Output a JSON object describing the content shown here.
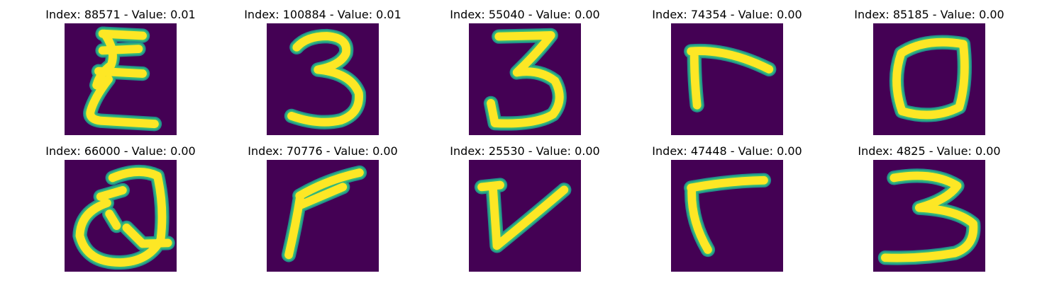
{
  "colors": {
    "background": "#440154",
    "stroke": "#fde725",
    "edge": "#35b779",
    "halo": "#21918c"
  },
  "images": [
    {
      "title": "Index: 88571 - Value: 0.01",
      "glyph": "E"
    },
    {
      "title": "Index: 100884 - Value: 0.01",
      "glyph": "3"
    },
    {
      "title": "Index: 55040 - Value: 0.00",
      "glyph": "3"
    },
    {
      "title": "Index: 74354 - Value: 0.00",
      "glyph": "r"
    },
    {
      "title": "Index: 85185 - Value: 0.00",
      "glyph": "0"
    },
    {
      "title": "Index: 66000 - Value: 0.00",
      "glyph": "Q"
    },
    {
      "title": "Index: 70776 - Value: 0.00",
      "glyph": "r"
    },
    {
      "title": "Index: 25530 - Value: 0.00",
      "glyph": "v"
    },
    {
      "title": "Index: 47448 - Value: 0.00",
      "glyph": "r"
    },
    {
      "title": "Index: 4825 - Value: 0.00",
      "glyph": "3"
    }
  ]
}
